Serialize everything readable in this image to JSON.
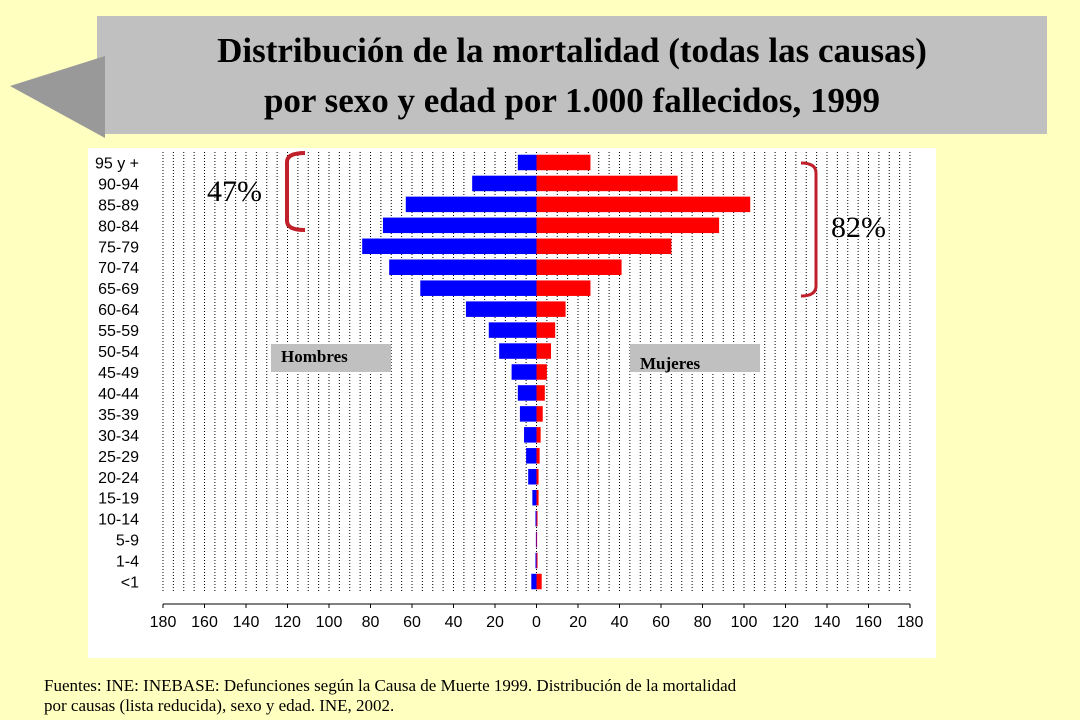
{
  "slide": {
    "title_line1": "Distribución de la mortalidad (todas las causas)",
    "title_line2": "por sexo y edad por 1.000 fallecidos, 1999",
    "source_line1": "Fuentes: INE: INEBASE: Defunciones según la Causa de Muerte 1999. Distribución de la mortalidad",
    "source_line2": "por causas (lista reducida), sexo y edad. INE, 2002."
  },
  "chart_data": {
    "type": "bar",
    "orientation": "horizontal",
    "title": "Distribución de la mortalidad (todas las causas) por sexo y edad por 1.000 fallecidos, 1999",
    "categories": [
      "95 y +",
      "90-94",
      "85-89",
      "80-84",
      "75-79",
      "70-74",
      "65-69",
      "60-64",
      "55-59",
      "50-54",
      "45-49",
      "40-44",
      "35-39",
      "30-34",
      "25-29",
      "20-24",
      "15-19",
      "10-14",
      "5-9",
      "1-4",
      "<1"
    ],
    "series": [
      {
        "name": "Hombres",
        "color": "#0000ff",
        "values": [
          9,
          31,
          63,
          74,
          84,
          71,
          56,
          34,
          23,
          18,
          12,
          9,
          8,
          6,
          5,
          4,
          2,
          0.5,
          0.3,
          0.5,
          2.5
        ]
      },
      {
        "name": "Mujeres",
        "color": "#ff0000",
        "values": [
          26,
          68,
          103,
          88,
          65,
          41,
          26,
          14,
          9,
          7,
          5,
          4,
          3,
          2,
          1.5,
          1,
          1,
          0.5,
          0.3,
          0.5,
          2.5
        ]
      }
    ],
    "x_ticks": [
      180,
      160,
      140,
      120,
      100,
      80,
      60,
      40,
      20,
      0,
      20,
      40,
      60,
      80,
      100,
      120,
      140,
      160,
      180
    ],
    "xlim": [
      -180,
      180
    ],
    "legend": [
      "Hombres",
      "Mujeres"
    ],
    "annotations": [
      {
        "text": "47%",
        "color": "#000000",
        "bracket_color": "#c0202a",
        "side": "left",
        "ages": "80 y +"
      },
      {
        "text": "82%",
        "color": "#000000",
        "bracket_color": "#c0202a",
        "side": "right",
        "ages": "65 y +"
      }
    ]
  }
}
